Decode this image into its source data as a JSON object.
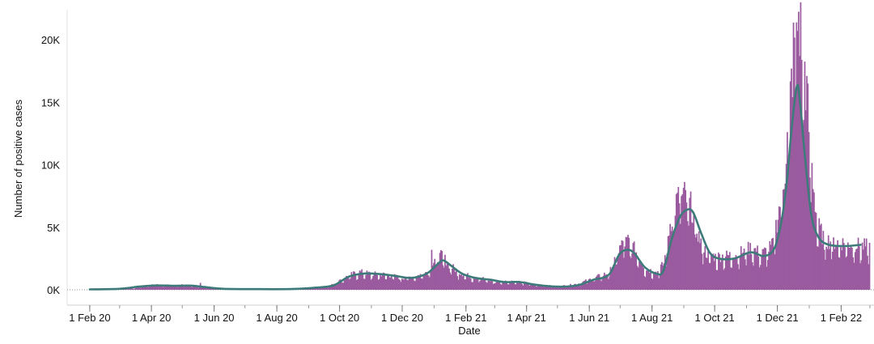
{
  "chart_data": {
    "type": "bar",
    "xlabel": "Date",
    "ylabel": "Number of positive cases",
    "x_start": "2020-02-01",
    "x_end": "2022-02-28",
    "xlim": [
      "2020-01-10",
      "2022-03-05"
    ],
    "ylim": [
      0,
      21500
    ],
    "x_ticks": [
      {
        "date": "2020-02-01",
        "label": "1 Feb 20"
      },
      {
        "date": "2020-04-01",
        "label": "1 Apr 20"
      },
      {
        "date": "2020-06-01",
        "label": "1 Jun 20"
      },
      {
        "date": "2020-08-01",
        "label": "1 Aug 20"
      },
      {
        "date": "2020-10-01",
        "label": "1 Oct 20"
      },
      {
        "date": "2020-12-01",
        "label": "1 Dec 20"
      },
      {
        "date": "2021-02-01",
        "label": "1 Feb 21"
      },
      {
        "date": "2021-04-01",
        "label": "1 Apr 21"
      },
      {
        "date": "2021-06-01",
        "label": "1 Jun 21"
      },
      {
        "date": "2021-08-01",
        "label": "1 Aug 21"
      },
      {
        "date": "2021-10-01",
        "label": "1 Oct 21"
      },
      {
        "date": "2021-12-01",
        "label": "1 Dec 21"
      },
      {
        "date": "2022-02-01",
        "label": "1 Feb 22"
      }
    ],
    "y_ticks": [
      {
        "value": 0,
        "label": "0K"
      },
      {
        "value": 5000,
        "label": "5K"
      },
      {
        "value": 10000,
        "label": "10K"
      },
      {
        "value": 15000,
        "label": "15K"
      },
      {
        "value": 20000,
        "label": "20K"
      }
    ],
    "series": [
      {
        "type": "bar",
        "color": "#9b5b9f",
        "anchors": [
          [
            "2020-03-01",
            30
          ],
          [
            "2020-03-15",
            120
          ],
          [
            "2020-03-25",
            300
          ],
          [
            "2020-04-05",
            380
          ],
          [
            "2020-04-20",
            330
          ],
          [
            "2020-05-01",
            360
          ],
          [
            "2020-05-15",
            280
          ],
          [
            "2020-05-25",
            160
          ],
          [
            "2020-06-01",
            100
          ],
          [
            "2020-06-15",
            60
          ],
          [
            "2020-07-01",
            50
          ],
          [
            "2020-08-01",
            60
          ],
          [
            "2020-08-20",
            100
          ],
          [
            "2020-09-01",
            150
          ],
          [
            "2020-09-20",
            260
          ],
          [
            "2020-10-01",
            700
          ],
          [
            "2020-10-10",
            1100
          ],
          [
            "2020-10-20",
            1350
          ],
          [
            "2020-11-01",
            1200
          ],
          [
            "2020-11-15",
            1150
          ],
          [
            "2020-12-01",
            900
          ],
          [
            "2020-12-15",
            1050
          ],
          [
            "2020-12-25",
            1400
          ],
          [
            "2021-01-01",
            2200
          ],
          [
            "2021-01-08",
            2600
          ],
          [
            "2021-01-15",
            1900
          ],
          [
            "2021-01-25",
            1300
          ],
          [
            "2021-02-05",
            1000
          ],
          [
            "2021-02-20",
            800
          ],
          [
            "2021-03-01",
            600
          ],
          [
            "2021-03-15",
            650
          ],
          [
            "2021-03-25",
            600
          ],
          [
            "2021-04-10",
            380
          ],
          [
            "2021-05-01",
            250
          ],
          [
            "2021-05-20",
            450
          ],
          [
            "2021-06-05",
            900
          ],
          [
            "2021-06-20",
            1300
          ],
          [
            "2021-07-01",
            3300
          ],
          [
            "2021-07-08",
            3700
          ],
          [
            "2021-07-15",
            3000
          ],
          [
            "2021-07-25",
            1600
          ],
          [
            "2021-08-05",
            1300
          ],
          [
            "2021-08-12",
            2000
          ],
          [
            "2021-08-18",
            5000
          ],
          [
            "2021-08-25",
            6800
          ],
          [
            "2021-09-01",
            7100
          ],
          [
            "2021-09-08",
            6200
          ],
          [
            "2021-09-15",
            4000
          ],
          [
            "2021-09-22",
            2800
          ],
          [
            "2021-10-01",
            2500
          ],
          [
            "2021-10-15",
            2600
          ],
          [
            "2021-10-25",
            2800
          ],
          [
            "2021-11-05",
            3200
          ],
          [
            "2021-11-15",
            2700
          ],
          [
            "2021-11-25",
            3300
          ],
          [
            "2021-12-01",
            5600
          ],
          [
            "2021-12-08",
            9200
          ],
          [
            "2021-12-13",
            14500
          ],
          [
            "2021-12-17",
            19000
          ],
          [
            "2021-12-21",
            20500
          ],
          [
            "2021-12-27",
            17000
          ],
          [
            "2022-01-02",
            10000
          ],
          [
            "2022-01-08",
            5000
          ],
          [
            "2022-01-15",
            3800
          ],
          [
            "2022-01-25",
            3600
          ],
          [
            "2022-02-10",
            3500
          ],
          [
            "2022-02-21",
            3300
          ]
        ],
        "spikes": [
          [
            "2020-05-18",
            550
          ],
          [
            "2020-12-29",
            3200
          ],
          [
            "2021-07-03",
            3900
          ],
          [
            "2021-08-29",
            7500
          ],
          [
            "2021-12-19",
            21400
          ],
          [
            "2021-12-24",
            18400
          ]
        ]
      },
      {
        "type": "line",
        "color": "#3d7a7a",
        "points": [
          [
            "2020-02-01",
            30
          ],
          [
            "2020-03-01",
            80
          ],
          [
            "2020-03-20",
            250
          ],
          [
            "2020-04-05",
            340
          ],
          [
            "2020-04-25",
            320
          ],
          [
            "2020-05-10",
            330
          ],
          [
            "2020-05-25",
            200
          ],
          [
            "2020-06-10",
            80
          ],
          [
            "2020-07-15",
            50
          ],
          [
            "2020-08-15",
            60
          ],
          [
            "2020-09-05",
            150
          ],
          [
            "2020-09-25",
            350
          ],
          [
            "2020-10-10",
            1050
          ],
          [
            "2020-10-25",
            1300
          ],
          [
            "2020-11-10",
            1250
          ],
          [
            "2020-11-25",
            1100
          ],
          [
            "2020-12-10",
            950
          ],
          [
            "2020-12-25",
            1300
          ],
          [
            "2021-01-05",
            2100
          ],
          [
            "2021-01-10",
            2350
          ],
          [
            "2021-01-18",
            1900
          ],
          [
            "2021-01-28",
            1300
          ],
          [
            "2021-02-10",
            950
          ],
          [
            "2021-02-25",
            800
          ],
          [
            "2021-03-10",
            620
          ],
          [
            "2021-03-25",
            620
          ],
          [
            "2021-04-10",
            400
          ],
          [
            "2021-04-30",
            250
          ],
          [
            "2021-05-20",
            350
          ],
          [
            "2021-06-05",
            800
          ],
          [
            "2021-06-20",
            1200
          ],
          [
            "2021-06-30",
            2800
          ],
          [
            "2021-07-08",
            3200
          ],
          [
            "2021-07-15",
            2900
          ],
          [
            "2021-07-25",
            1800
          ],
          [
            "2021-08-05",
            1300
          ],
          [
            "2021-08-12",
            1500
          ],
          [
            "2021-08-20",
            4000
          ],
          [
            "2021-08-28",
            5800
          ],
          [
            "2021-09-04",
            6400
          ],
          [
            "2021-09-10",
            6200
          ],
          [
            "2021-09-18",
            4500
          ],
          [
            "2021-09-26",
            3000
          ],
          [
            "2021-10-05",
            2500
          ],
          [
            "2021-10-20",
            2500
          ],
          [
            "2021-11-05",
            3000
          ],
          [
            "2021-11-18",
            2700
          ],
          [
            "2021-11-28",
            3300
          ],
          [
            "2021-12-05",
            5500
          ],
          [
            "2021-12-10",
            8500
          ],
          [
            "2021-12-15",
            13000
          ],
          [
            "2021-12-20",
            16300
          ],
          [
            "2021-12-23",
            15000
          ],
          [
            "2021-12-28",
            10500
          ],
          [
            "2022-01-03",
            6000
          ],
          [
            "2022-01-10",
            4200
          ],
          [
            "2022-01-20",
            3600
          ],
          [
            "2022-02-05",
            3500
          ],
          [
            "2022-02-20",
            3600
          ]
        ]
      }
    ]
  }
}
